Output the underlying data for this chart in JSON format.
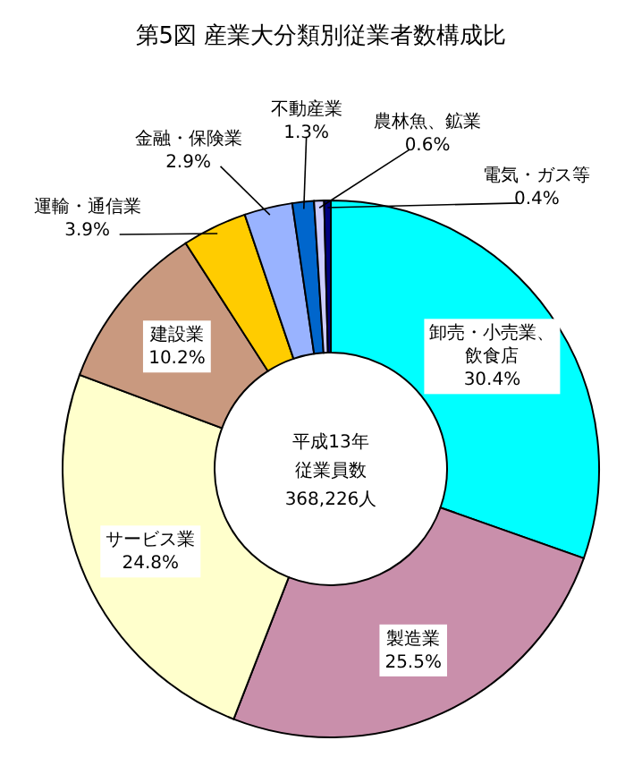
{
  "chart_data": {
    "type": "donut",
    "title": "第5図  産業大分類別従業者数構成比",
    "categories": [
      "卸売・小売業、飲食店",
      "製造業",
      "サービス業",
      "建設業",
      "運輸・通信業",
      "金融・保険業",
      "不動産業",
      "農林魚、鉱業",
      "電気・ガス等"
    ],
    "values": [
      30.4,
      25.5,
      24.8,
      10.2,
      3.9,
      2.9,
      1.3,
      0.6,
      0.4
    ],
    "colors": [
      "#00ffff",
      "#c98fab",
      "#ffffcc",
      "#c9997f",
      "#ffcc00",
      "#99b3ff",
      "#0066cc",
      "#ccccff",
      "#000080"
    ],
    "value_labels": [
      "30.4%",
      "25.5%",
      "24.8%",
      "10.2%",
      "3.9%",
      "2.9%",
      "1.3%",
      "0.6%",
      "0.4%"
    ],
    "annotations": [
      "平成13年",
      "従業員数",
      "368,226人"
    ]
  }
}
